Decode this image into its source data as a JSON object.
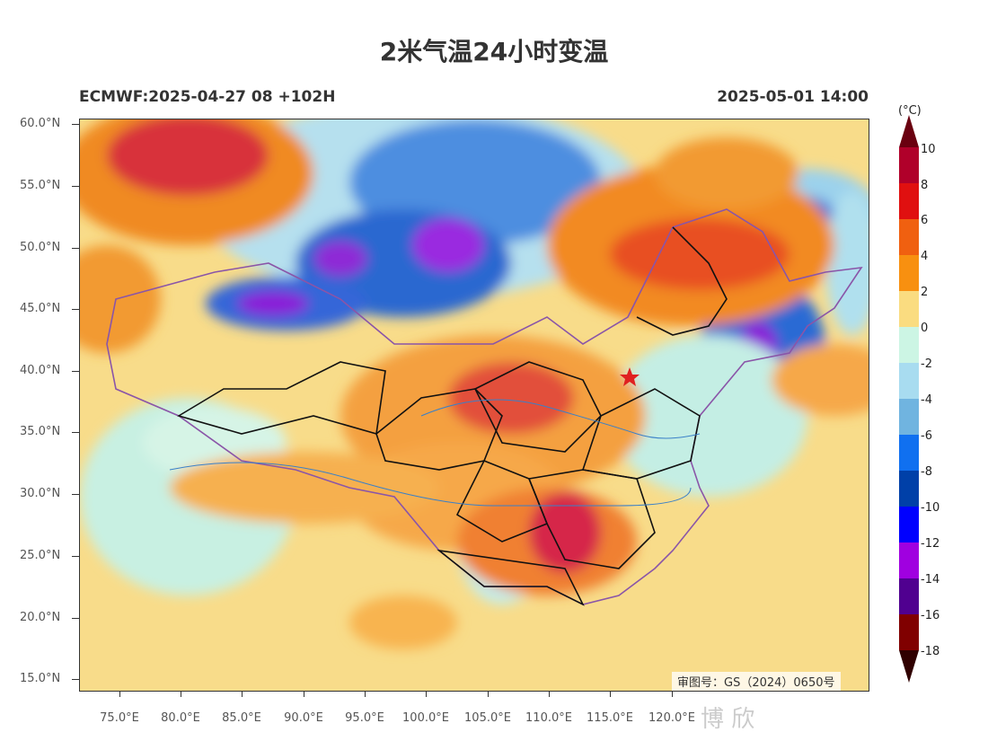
{
  "title": "2米气温24小时变温",
  "model_run": "ECMWF:2025-04-27 08 +102H",
  "valid_time": "2025-05-01 14:00",
  "approval_number": "审图号：GS（2024）0650号",
  "watermark": "博 欣",
  "lat_labels": [
    "60.0°N",
    "55.0°N",
    "50.0°N",
    "45.0°N",
    "40.0°N",
    "35.0°N",
    "30.0°N",
    "25.0°N",
    "20.0°N",
    "15.0°N"
  ],
  "lon_labels": [
    "75.0°E",
    "80.0°E",
    "85.0°E",
    "90.0°E",
    "95.0°E",
    "100.0°E",
    "105.0°E",
    "110.0°E",
    "115.0°E",
    "120.0°E"
  ],
  "colorbar": {
    "unit": "(°C)",
    "labels": [
      "10",
      "8",
      "6",
      "4",
      "2",
      "0",
      "-2",
      "-4",
      "-6",
      "-8",
      "-10",
      "-12",
      "-14",
      "-16",
      "-18"
    ],
    "colors": [
      "#b0002a",
      "#e01010",
      "#f06010",
      "#f89010",
      "#fadc80",
      "#ccf5e4",
      "#a8dcf0",
      "#70b4e0",
      "#1070f0",
      "#0040a8",
      "#0000ff",
      "#a000e0",
      "#500090",
      "#800000"
    ],
    "max_color": "#6a0010",
    "min_color": "#300000"
  }
}
